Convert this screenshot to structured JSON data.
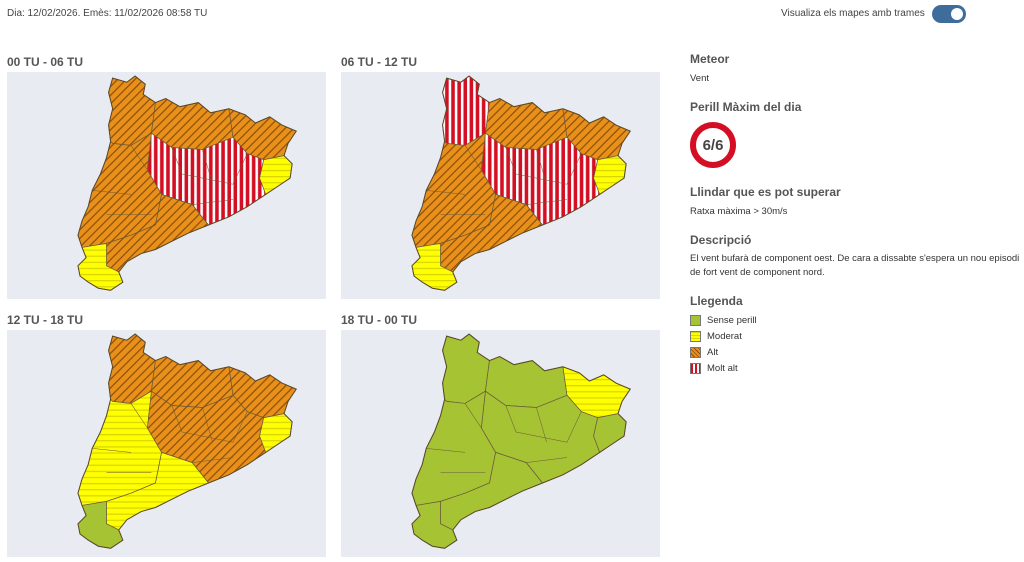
{
  "header": {
    "date_text": "Dia: 12/02/2026. Emès: 11/02/2026 08:58 TU",
    "toggle_label": "Visualiza els mapes amb trames",
    "toggle_on": true
  },
  "maps": [
    {
      "title": "00 TU - 06 TU"
    },
    {
      "title": "06 TU - 12 TU"
    },
    {
      "title": "12 TU - 18 TU"
    },
    {
      "title": "18 TU - 00 TU"
    }
  ],
  "sidebar": {
    "meteor_heading": "Meteor",
    "meteor_value": "Vent",
    "danger_heading": "Perill Màxim del dia",
    "danger_value": "6/6",
    "threshold_heading": "Llindar que es pot superar",
    "threshold_value": "Ratxa màxima > 30m/s",
    "description_heading": "Descripció",
    "description_text": "El vent bufarà de component oest. De cara a dissabte s'espera un nou episodi de fort vent de component nord.",
    "legend_heading": "Llegenda",
    "legend": [
      {
        "label": "Sense perill",
        "pattern": "green"
      },
      {
        "label": "Moderat",
        "pattern": "yellow"
      },
      {
        "label": "Alt",
        "pattern": "orange"
      },
      {
        "label": "Molt alt",
        "pattern": "red"
      }
    ]
  },
  "colors": {
    "green": "#a6c334",
    "yellow": "#ffff00",
    "orange": "#e8901a",
    "red": "#d40f23",
    "toggle": "#3e6d9c",
    "map_bg": "#e8ebf2"
  }
}
